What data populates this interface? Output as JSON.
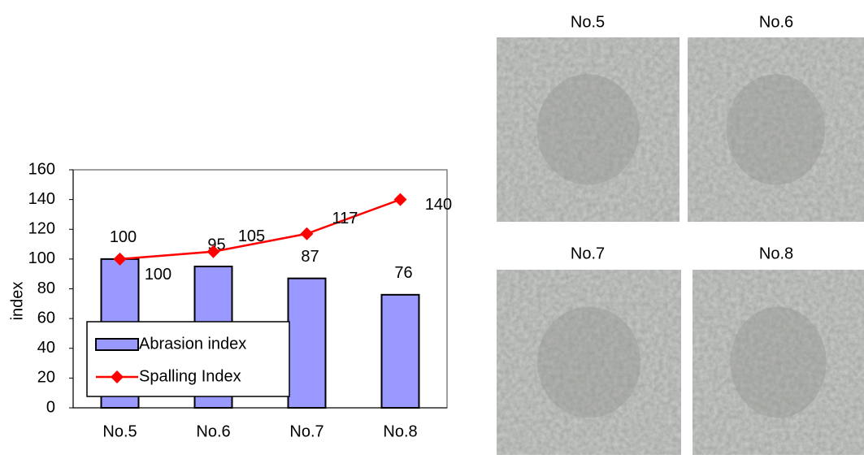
{
  "chart_data": {
    "type": "bar",
    "categories": [
      "No.5",
      "No.6",
      "No.7",
      "No.8"
    ],
    "y_label": "index",
    "series": [
      {
        "name": "Abrasion index",
        "type": "bar",
        "color": "#9999ff",
        "values": [
          100,
          95,
          87,
          76
        ]
      },
      {
        "name": "Spalling Index",
        "type": "line",
        "color": "#ff0000",
        "values": [
          100,
          105,
          117,
          140
        ]
      }
    ],
    "ylim": [
      0,
      160
    ],
    "yticks": [
      0,
      20,
      40,
      60,
      80,
      100,
      120,
      140,
      160
    ],
    "legend": "lower left"
  },
  "photos": [
    {
      "label": "No.5"
    },
    {
      "label": "No.6"
    },
    {
      "label": "No.7"
    },
    {
      "label": "No.8"
    }
  ]
}
